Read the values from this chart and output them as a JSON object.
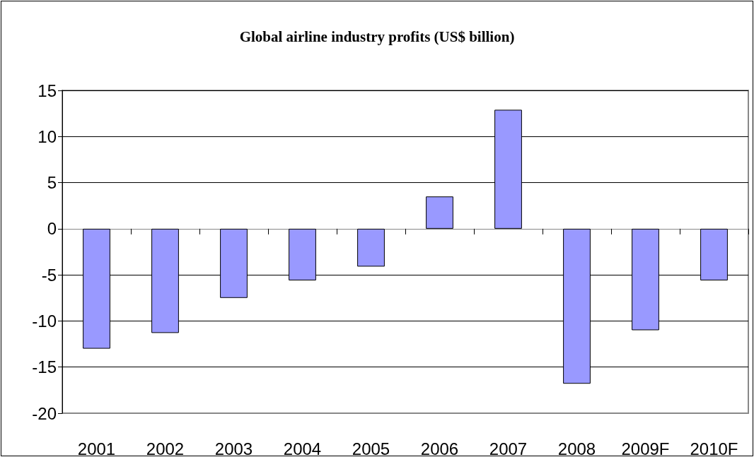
{
  "chart_data": {
    "type": "bar",
    "title": "Global airline industry profits (US$ billion)",
    "categories": [
      "2001",
      "2002",
      "2003",
      "2004",
      "2005",
      "2006",
      "2007",
      "2008",
      "2009F",
      "2010F"
    ],
    "values": [
      -13.0,
      -11.3,
      -7.5,
      -5.6,
      -4.1,
      3.5,
      12.9,
      -16.8,
      -11.0,
      -5.6
    ],
    "color": "#9999ff",
    "ylim": [
      -20,
      15
    ],
    "yticks": [
      -20,
      -15,
      -10,
      -5,
      0,
      5,
      10,
      15
    ],
    "grid": "y"
  }
}
